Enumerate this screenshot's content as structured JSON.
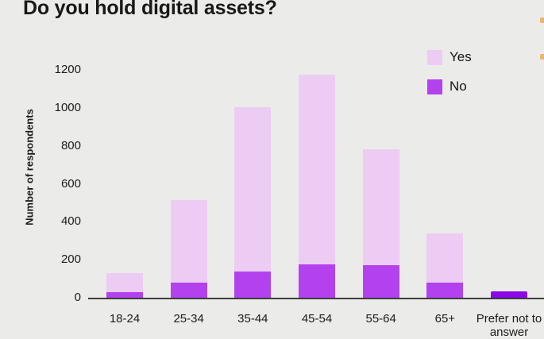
{
  "title": "Do you hold digital assets?",
  "legend": [
    {
      "label": "Yes",
      "color": "#edccf4"
    },
    {
      "label": "No",
      "color": "#b342ee"
    }
  ],
  "chart_data": {
    "type": "bar",
    "stacked": true,
    "title": "Do you hold digital assets?",
    "xlabel": "",
    "ylabel": "Number of respondents",
    "categories": [
      "18-24",
      "25-34",
      "35-44",
      "45-54",
      "55-64",
      "65+",
      "Prefer not to answer"
    ],
    "series": [
      {
        "name": "No",
        "color": "#b342ee",
        "in_legend": true,
        "values": [
          30,
          80,
          140,
          175,
          170,
          80,
          0
        ]
      },
      {
        "name": "Yes",
        "color": "#edccf4",
        "in_legend": true,
        "values": [
          100,
          435,
          865,
          1000,
          610,
          260,
          0
        ]
      },
      {
        "name": "Prefer not to answer",
        "color": "#8c08e6",
        "in_legend": false,
        "values": [
          0,
          0,
          0,
          0,
          0,
          0,
          35
        ]
      }
    ],
    "totals": [
      130,
      515,
      1005,
      1175,
      780,
      340,
      35
    ],
    "ylim": [
      0,
      1200
    ],
    "yticks": [
      0,
      200,
      400,
      600,
      800,
      1000,
      1200
    ],
    "grid": false,
    "legend_position": "top-right",
    "background_color": "#ebebe9",
    "axis_color": "#3d3d3b"
  }
}
